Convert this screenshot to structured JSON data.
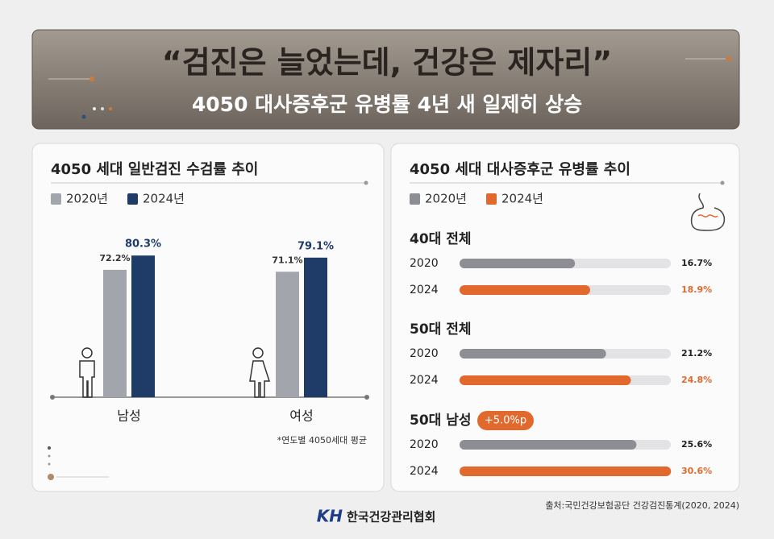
{
  "header": {
    "title": "“검진은 늘었는데, 건강은 제자리”",
    "subtitle": "4050 대사증후군 유병률 4년 새 일제히 상승"
  },
  "chart_data": [
    {
      "type": "bar",
      "title": "4050 세대 일반검진 수검률 추이",
      "categories": [
        "남성",
        "여성"
      ],
      "series": [
        {
          "name": "2020년",
          "color": "#a2a5ac",
          "values": [
            72.2,
            71.1
          ],
          "value_labels": [
            "72.2%",
            "71.1%"
          ]
        },
        {
          "name": "2024년",
          "color": "#1f3c68",
          "values": [
            80.3,
            79.1
          ],
          "value_labels": [
            "80.3%",
            "79.1%"
          ]
        }
      ],
      "note": "*연도별 4050세대 평균"
    },
    {
      "type": "barh",
      "title": "4050 세대 대사증후군 유병률 추이",
      "categories": [
        "40대 전체",
        "50대 전체",
        "50대 남성"
      ],
      "row_labels": [
        "2020",
        "2024"
      ],
      "series": [
        {
          "name": "2020년",
          "color": "#8c8e93",
          "values": [
            16.7,
            21.2,
            25.6
          ],
          "value_labels": [
            "16.7%",
            "21.2%",
            "25.6%"
          ]
        },
        {
          "name": "2024년",
          "color": "#e2692d",
          "values": [
            18.9,
            24.8,
            30.6
          ],
          "value_labels": [
            "18.9%",
            "24.8%",
            "30.6%"
          ]
        }
      ],
      "annotation": "+5.0%p"
    }
  ],
  "source": "출처:국민건강보험공단 건강검진통계(2020, 2024)",
  "logo": {
    "mark": "KH",
    "name": "한국건강관리협회"
  }
}
